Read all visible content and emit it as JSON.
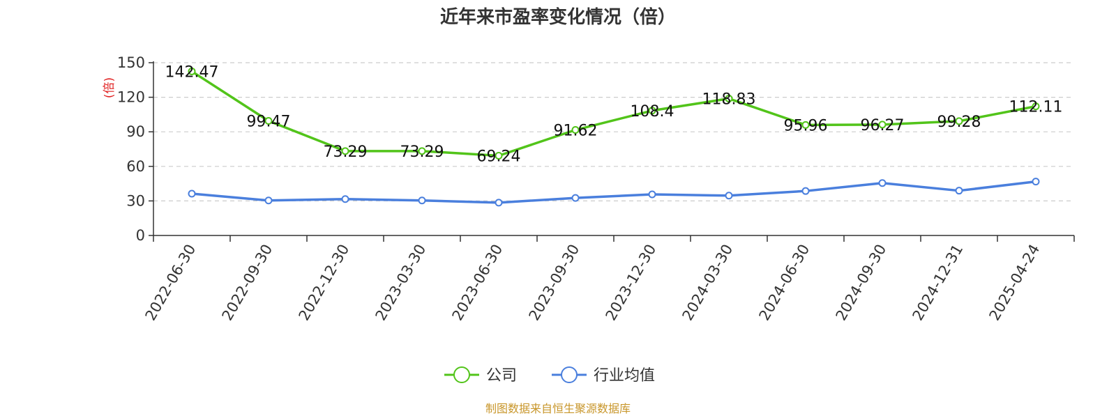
{
  "chart_data": {
    "type": "line",
    "title": "近年来市盈率变化情况（倍）",
    "ylabel": "(倍)",
    "ylim": [
      0,
      150
    ],
    "yticks": [
      0,
      30,
      60,
      90,
      120,
      150
    ],
    "grid": true,
    "legend_position": "bottom",
    "categories": [
      "2022-06-30",
      "2022-09-30",
      "2022-12-30",
      "2023-03-30",
      "2023-06-30",
      "2023-09-30",
      "2023-12-30",
      "2024-03-30",
      "2024-06-30",
      "2024-09-30",
      "2024-12-31",
      "2025-04-24"
    ],
    "series": [
      {
        "name": "公司",
        "color": "#52c41a",
        "values": [
          142.47,
          99.47,
          73.29,
          73.29,
          69.24,
          91.62,
          108.4,
          118.83,
          95.96,
          96.27,
          99.28,
          112.11
        ],
        "labels": [
          "142.47",
          "99.47",
          "73.29",
          "73.29",
          "69.24",
          "91.62",
          "108.4",
          "118.83",
          "95.96",
          "96.27",
          "99.28",
          "112.11"
        ]
      },
      {
        "name": "行业均值",
        "color": "#4a7fdd",
        "values": [
          36.3,
          30.4,
          31.6,
          30.4,
          28.5,
          32.6,
          35.7,
          34.6,
          38.6,
          45.5,
          38.9,
          46.8
        ]
      }
    ],
    "source": "制图数据来自恒生聚源数据库"
  }
}
